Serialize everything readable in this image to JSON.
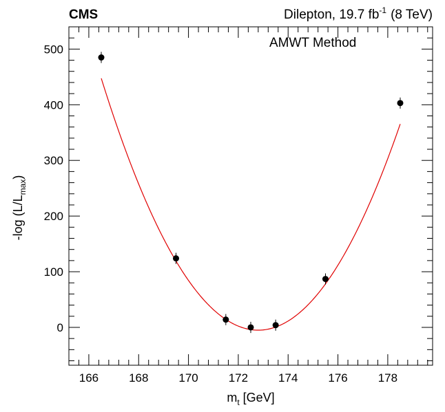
{
  "header": {
    "experiment": "CMS",
    "channel_prefix": "Dilepton, 19.7 fb",
    "lumi_exponent": "-1",
    "energy": "(8 TeV)"
  },
  "chart_data": {
    "type": "scatter",
    "title": "",
    "annotation": "AMWT Method",
    "xlabel": {
      "main": "m",
      "sub": "t",
      "unit": " [GeV]"
    },
    "ylabel": {
      "prefix": "-log (L/L",
      "sub": "max",
      "suffix": ")"
    },
    "xlim": [
      165.2,
      179.8
    ],
    "ylim": [
      -68,
      540
    ],
    "x_ticks": [
      166,
      168,
      170,
      172,
      174,
      176,
      178
    ],
    "y_ticks": [
      0,
      100,
      200,
      300,
      400,
      500
    ],
    "x_tick_labels": [
      "166",
      "168",
      "170",
      "172",
      "174",
      "176",
      "178"
    ],
    "y_tick_labels": [
      "0",
      "100",
      "200",
      "300",
      "400",
      "500"
    ],
    "grid": false,
    "points": [
      {
        "x": 166.5,
        "y": 485,
        "err": 10
      },
      {
        "x": 169.5,
        "y": 124,
        "err": 10
      },
      {
        "x": 171.5,
        "y": 14,
        "err": 10
      },
      {
        "x": 172.5,
        "y": 0,
        "err": 10
      },
      {
        "x": 173.5,
        "y": 4,
        "err": 10
      },
      {
        "x": 175.5,
        "y": 87,
        "err": 10
      },
      {
        "x": 178.5,
        "y": 403,
        "err": 10
      }
    ],
    "fit": {
      "type": "parabola",
      "xmin": 166.5,
      "xmax": 178.5,
      "x0": 172.8,
      "y0": -5,
      "a": 11.4,
      "color": "#e00000"
    },
    "marker_color": "#000000"
  }
}
